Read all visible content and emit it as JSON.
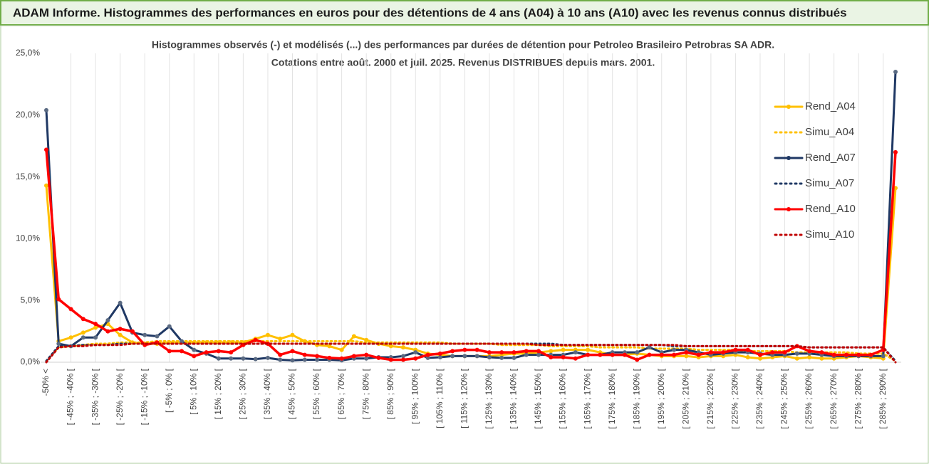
{
  "chart_data": {
    "type": "line",
    "title": "ADAM Informe. Histogrammes des performances en euros pour des détentions de 4 ans (A04) à 10 ans (A10) avec les revenus connus distribués",
    "subtitle": [
      "Histogrammes observés (-) et modélisés (...) des performances par durées de détention pour Petroleo Brasileiro Petrobras SA ADR.",
      "Cotations entre août. 2000 et juil. 2025. Revenus DISTRIBUES depuis mars. 2001."
    ],
    "categories": [
      "-50% <",
      null,
      "[ -45% ; -40% [",
      null,
      "[ -35% ; -30% [",
      null,
      "[ -25% ; -20% [",
      null,
      "[ -15% ; -10% [",
      null,
      "[ -5% ; 0% [",
      null,
      "[ 5% ; 10% [",
      null,
      "[ 15% ; 20% [",
      null,
      "[ 25% ; 30% [",
      null,
      "[ 35% ; 40% [",
      null,
      "[ 45% ; 50% [",
      null,
      "[ 55% ; 60% [",
      null,
      "[ 65% ; 70% [",
      null,
      "[ 75% ; 80% [",
      null,
      "[ 85% ; 90% [",
      null,
      "[ 95% ; 100% [",
      null,
      "[ 105% ; 110% [",
      null,
      "[ 115% ; 120% [",
      null,
      "[ 125% ; 130% [",
      null,
      "[ 135% ; 140% [",
      null,
      "[ 145% ; 150% [",
      null,
      "[ 155% ; 160% [",
      null,
      "[ 165% ; 170% [",
      null,
      "[ 175% ; 180% [",
      null,
      "[ 185% ; 190% [",
      null,
      "[ 195% ; 200% [",
      null,
      "[ 205% ; 210% [",
      null,
      "[ 215% ; 220% [",
      null,
      "[ 225% ; 230% [",
      null,
      "[ 235% ; 240% [",
      null,
      "[ 245% ; 250% [",
      null,
      "[ 255% ; 260% [",
      null,
      "[ 265% ; 270% [",
      null,
      "[ 275% ; 280% [",
      null,
      "[ 285% ; 290% [",
      null
    ],
    "series": [
      {
        "name": "Rend_A04",
        "color": "#ffc000",
        "style": "solid",
        "values": [
          14.3,
          1.7,
          2.0,
          2.4,
          2.8,
          3.1,
          2.2,
          1.6,
          1.5,
          1.5,
          1.6,
          1.6,
          1.6,
          1.6,
          1.6,
          1.6,
          1.6,
          1.9,
          2.2,
          1.9,
          2.2,
          1.7,
          1.4,
          1.3,
          1.0,
          2.1,
          1.8,
          1.5,
          1.3,
          1.2,
          1.0,
          0.7,
          0.6,
          0.5,
          0.5,
          0.5,
          0.5,
          0.6,
          0.7,
          0.7,
          0.8,
          0.9,
          1.0,
          1.0,
          1.0,
          0.8,
          0.6,
          0.6,
          0.7,
          0.6,
          0.5,
          0.5,
          0.5,
          0.4,
          0.5,
          0.5,
          0.6,
          0.4,
          0.3,
          0.4,
          0.5,
          0.3,
          0.4,
          0.3,
          0.3,
          0.4,
          0.5,
          0.4,
          0.3,
          14.1
        ]
      },
      {
        "name": "Simu_A04",
        "color": "#ffc000",
        "style": "dotted",
        "values": [
          0.1,
          1.2,
          1.3,
          1.4,
          1.5,
          1.5,
          1.6,
          1.6,
          1.6,
          1.7,
          1.7,
          1.7,
          1.7,
          1.7,
          1.7,
          1.7,
          1.7,
          1.7,
          1.7,
          1.7,
          1.7,
          1.7,
          1.7,
          1.7,
          1.7,
          1.7,
          1.6,
          1.6,
          1.6,
          1.6,
          1.6,
          1.6,
          1.6,
          1.5,
          1.5,
          1.5,
          1.5,
          1.4,
          1.4,
          1.4,
          1.4,
          1.3,
          1.3,
          1.3,
          1.3,
          1.2,
          1.2,
          1.2,
          1.2,
          1.1,
          1.1,
          1.1,
          1.1,
          1.0,
          1.0,
          1.0,
          1.0,
          0.9,
          0.9,
          0.9,
          0.9,
          0.8,
          0.8,
          0.8,
          0.8,
          0.8,
          0.7,
          0.7,
          0.7,
          0.1
        ]
      },
      {
        "name": "Rend_A07",
        "color": "#1f3864",
        "style": "solid",
        "values": [
          20.4,
          1.5,
          1.3,
          2.0,
          2.0,
          3.4,
          4.8,
          2.4,
          2.2,
          2.1,
          2.9,
          1.7,
          1.0,
          0.7,
          0.3,
          0.3,
          0.3,
          0.25,
          0.35,
          0.2,
          0.15,
          0.2,
          0.2,
          0.2,
          0.15,
          0.3,
          0.3,
          0.4,
          0.4,
          0.5,
          0.8,
          0.35,
          0.4,
          0.5,
          0.5,
          0.5,
          0.4,
          0.35,
          0.35,
          0.6,
          0.6,
          0.6,
          0.6,
          0.8,
          0.6,
          0.6,
          0.8,
          0.8,
          0.8,
          1.2,
          0.8,
          1.0,
          1.0,
          0.8,
          0.6,
          0.7,
          0.8,
          0.8,
          0.7,
          0.6,
          0.6,
          0.7,
          0.7,
          0.6,
          0.5,
          0.5,
          0.5,
          0.5,
          0.5,
          23.5
        ]
      },
      {
        "name": "Simu_A07",
        "color": "#1f3864",
        "style": "dotted",
        "values": [
          0.1,
          1.3,
          1.3,
          1.4,
          1.4,
          1.4,
          1.5,
          1.5,
          1.5,
          1.5,
          1.5,
          1.5,
          1.5,
          1.5,
          1.5,
          1.5,
          1.5,
          1.5,
          1.5,
          1.5,
          1.5,
          1.5,
          1.5,
          1.5,
          1.5,
          1.5,
          1.5,
          1.5,
          1.5,
          1.5,
          1.5,
          1.5,
          1.5,
          1.5,
          1.5,
          1.5,
          1.5,
          1.5,
          1.5,
          1.5,
          1.5,
          1.5,
          1.4,
          1.4,
          1.4,
          1.4,
          1.4,
          1.4,
          1.4,
          1.4,
          1.4,
          1.3,
          1.3,
          1.3,
          1.3,
          1.3,
          1.3,
          1.3,
          1.3,
          1.3,
          1.3,
          1.3,
          1.2,
          1.2,
          1.2,
          1.2,
          1.2,
          1.2,
          1.2,
          0.1
        ]
      },
      {
        "name": "Rend_A10",
        "color": "#ff0000",
        "style": "solid",
        "values": [
          17.2,
          5.1,
          4.3,
          3.5,
          3.1,
          2.5,
          2.7,
          2.5,
          1.4,
          1.6,
          0.9,
          0.9,
          0.5,
          0.8,
          0.9,
          0.8,
          1.4,
          1.8,
          1.5,
          0.6,
          0.9,
          0.6,
          0.5,
          0.35,
          0.3,
          0.5,
          0.6,
          0.35,
          0.2,
          0.2,
          0.3,
          0.6,
          0.7,
          0.9,
          1.0,
          1.0,
          0.8,
          0.8,
          0.8,
          0.9,
          0.9,
          0.4,
          0.4,
          0.3,
          0.6,
          0.6,
          0.6,
          0.6,
          0.2,
          0.6,
          0.6,
          0.6,
          0.8,
          0.6,
          0.8,
          0.8,
          1.0,
          1.0,
          0.6,
          0.8,
          0.8,
          1.3,
          0.9,
          0.8,
          0.6,
          0.6,
          0.6,
          0.6,
          1.0,
          17.0
        ]
      },
      {
        "name": "Simu_A10",
        "color": "#c00000",
        "style": "dotted",
        "values": [
          0.0,
          1.2,
          1.3,
          1.3,
          1.4,
          1.4,
          1.4,
          1.5,
          1.5,
          1.5,
          1.5,
          1.5,
          1.5,
          1.5,
          1.5,
          1.5,
          1.5,
          1.5,
          1.5,
          1.5,
          1.5,
          1.5,
          1.5,
          1.5,
          1.5,
          1.5,
          1.5,
          1.5,
          1.5,
          1.5,
          1.5,
          1.5,
          1.5,
          1.5,
          1.5,
          1.5,
          1.5,
          1.5,
          1.5,
          1.5,
          1.4,
          1.4,
          1.4,
          1.4,
          1.4,
          1.4,
          1.4,
          1.4,
          1.4,
          1.4,
          1.4,
          1.4,
          1.3,
          1.3,
          1.3,
          1.3,
          1.3,
          1.3,
          1.3,
          1.3,
          1.3,
          1.3,
          1.2,
          1.2,
          1.2,
          1.2,
          1.2,
          1.2,
          1.2,
          0.0
        ]
      }
    ],
    "ylim": [
      0,
      25
    ],
    "yticks": [
      {
        "value": 0,
        "label": "0,0%"
      },
      {
        "value": 5,
        "label": "5,0%"
      },
      {
        "value": 10,
        "label": "10,0%"
      },
      {
        "value": 15,
        "label": "15,0%"
      },
      {
        "value": 20,
        "label": "20,0%"
      },
      {
        "value": 25,
        "label": "25,0%"
      }
    ],
    "legend": "upper right",
    "grid": "x"
  }
}
